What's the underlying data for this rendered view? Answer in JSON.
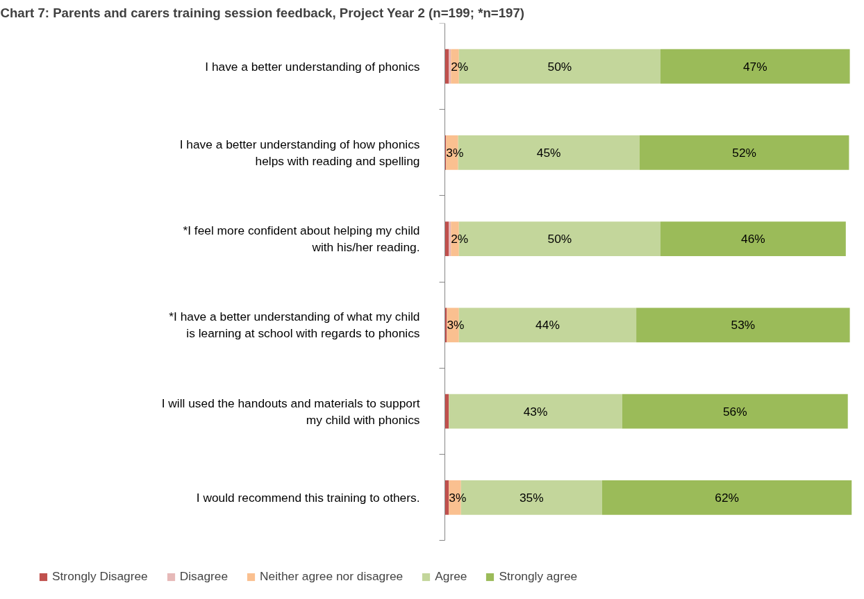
{
  "chart_data": {
    "type": "bar",
    "orientation": "horizontal",
    "stacked": true,
    "title": "Chart 7: Parents and carers training session feedback, Project Year 2 (n=199; *n=197)",
    "categories": [
      "I have a better understanding of phonics",
      "I have a better understanding of how phonics helps with reading and spelling",
      "*I feel more confident about helping my child with his/her reading.",
      "*I have a better understanding of what my child is learning at school with regards to phonics",
      "I will used the handouts and materials to support my child with phonics",
      "I would recommend this training to others."
    ],
    "series": [
      {
        "name": "Strongly Disagree",
        "color": "#c0504d",
        "values": [
          1,
          0.3,
          1,
          0.5,
          1,
          1
        ],
        "value_labels": [
          null,
          null,
          null,
          null,
          null,
          null
        ]
      },
      {
        "name": "Disagree",
        "color": "#e6b9b8",
        "values": [
          0.5,
          0,
          0.5,
          0,
          0,
          0
        ],
        "value_labels": [
          null,
          null,
          null,
          null,
          null,
          null
        ]
      },
      {
        "name": "Neither agree nor disagree",
        "color": "#fac090",
        "values": [
          2,
          3,
          2,
          3,
          0,
          3
        ],
        "value_labels": [
          "2%",
          "3%",
          "2%",
          "3%",
          null,
          "3%"
        ]
      },
      {
        "name": "Agree",
        "color": "#c3d69b",
        "values": [
          50,
          45,
          50,
          44,
          43,
          35
        ],
        "value_labels": [
          "50%",
          "45%",
          "50%",
          "44%",
          "43%",
          "35%"
        ]
      },
      {
        "name": "Strongly agree",
        "color": "#9bbb59",
        "values": [
          47,
          52,
          46,
          53,
          56,
          62
        ],
        "value_labels": [
          "47%",
          "52%",
          "46%",
          "53%",
          "56%",
          "62%"
        ]
      }
    ],
    "legend": "bottom",
    "grid": false,
    "tick_labels": "y"
  }
}
